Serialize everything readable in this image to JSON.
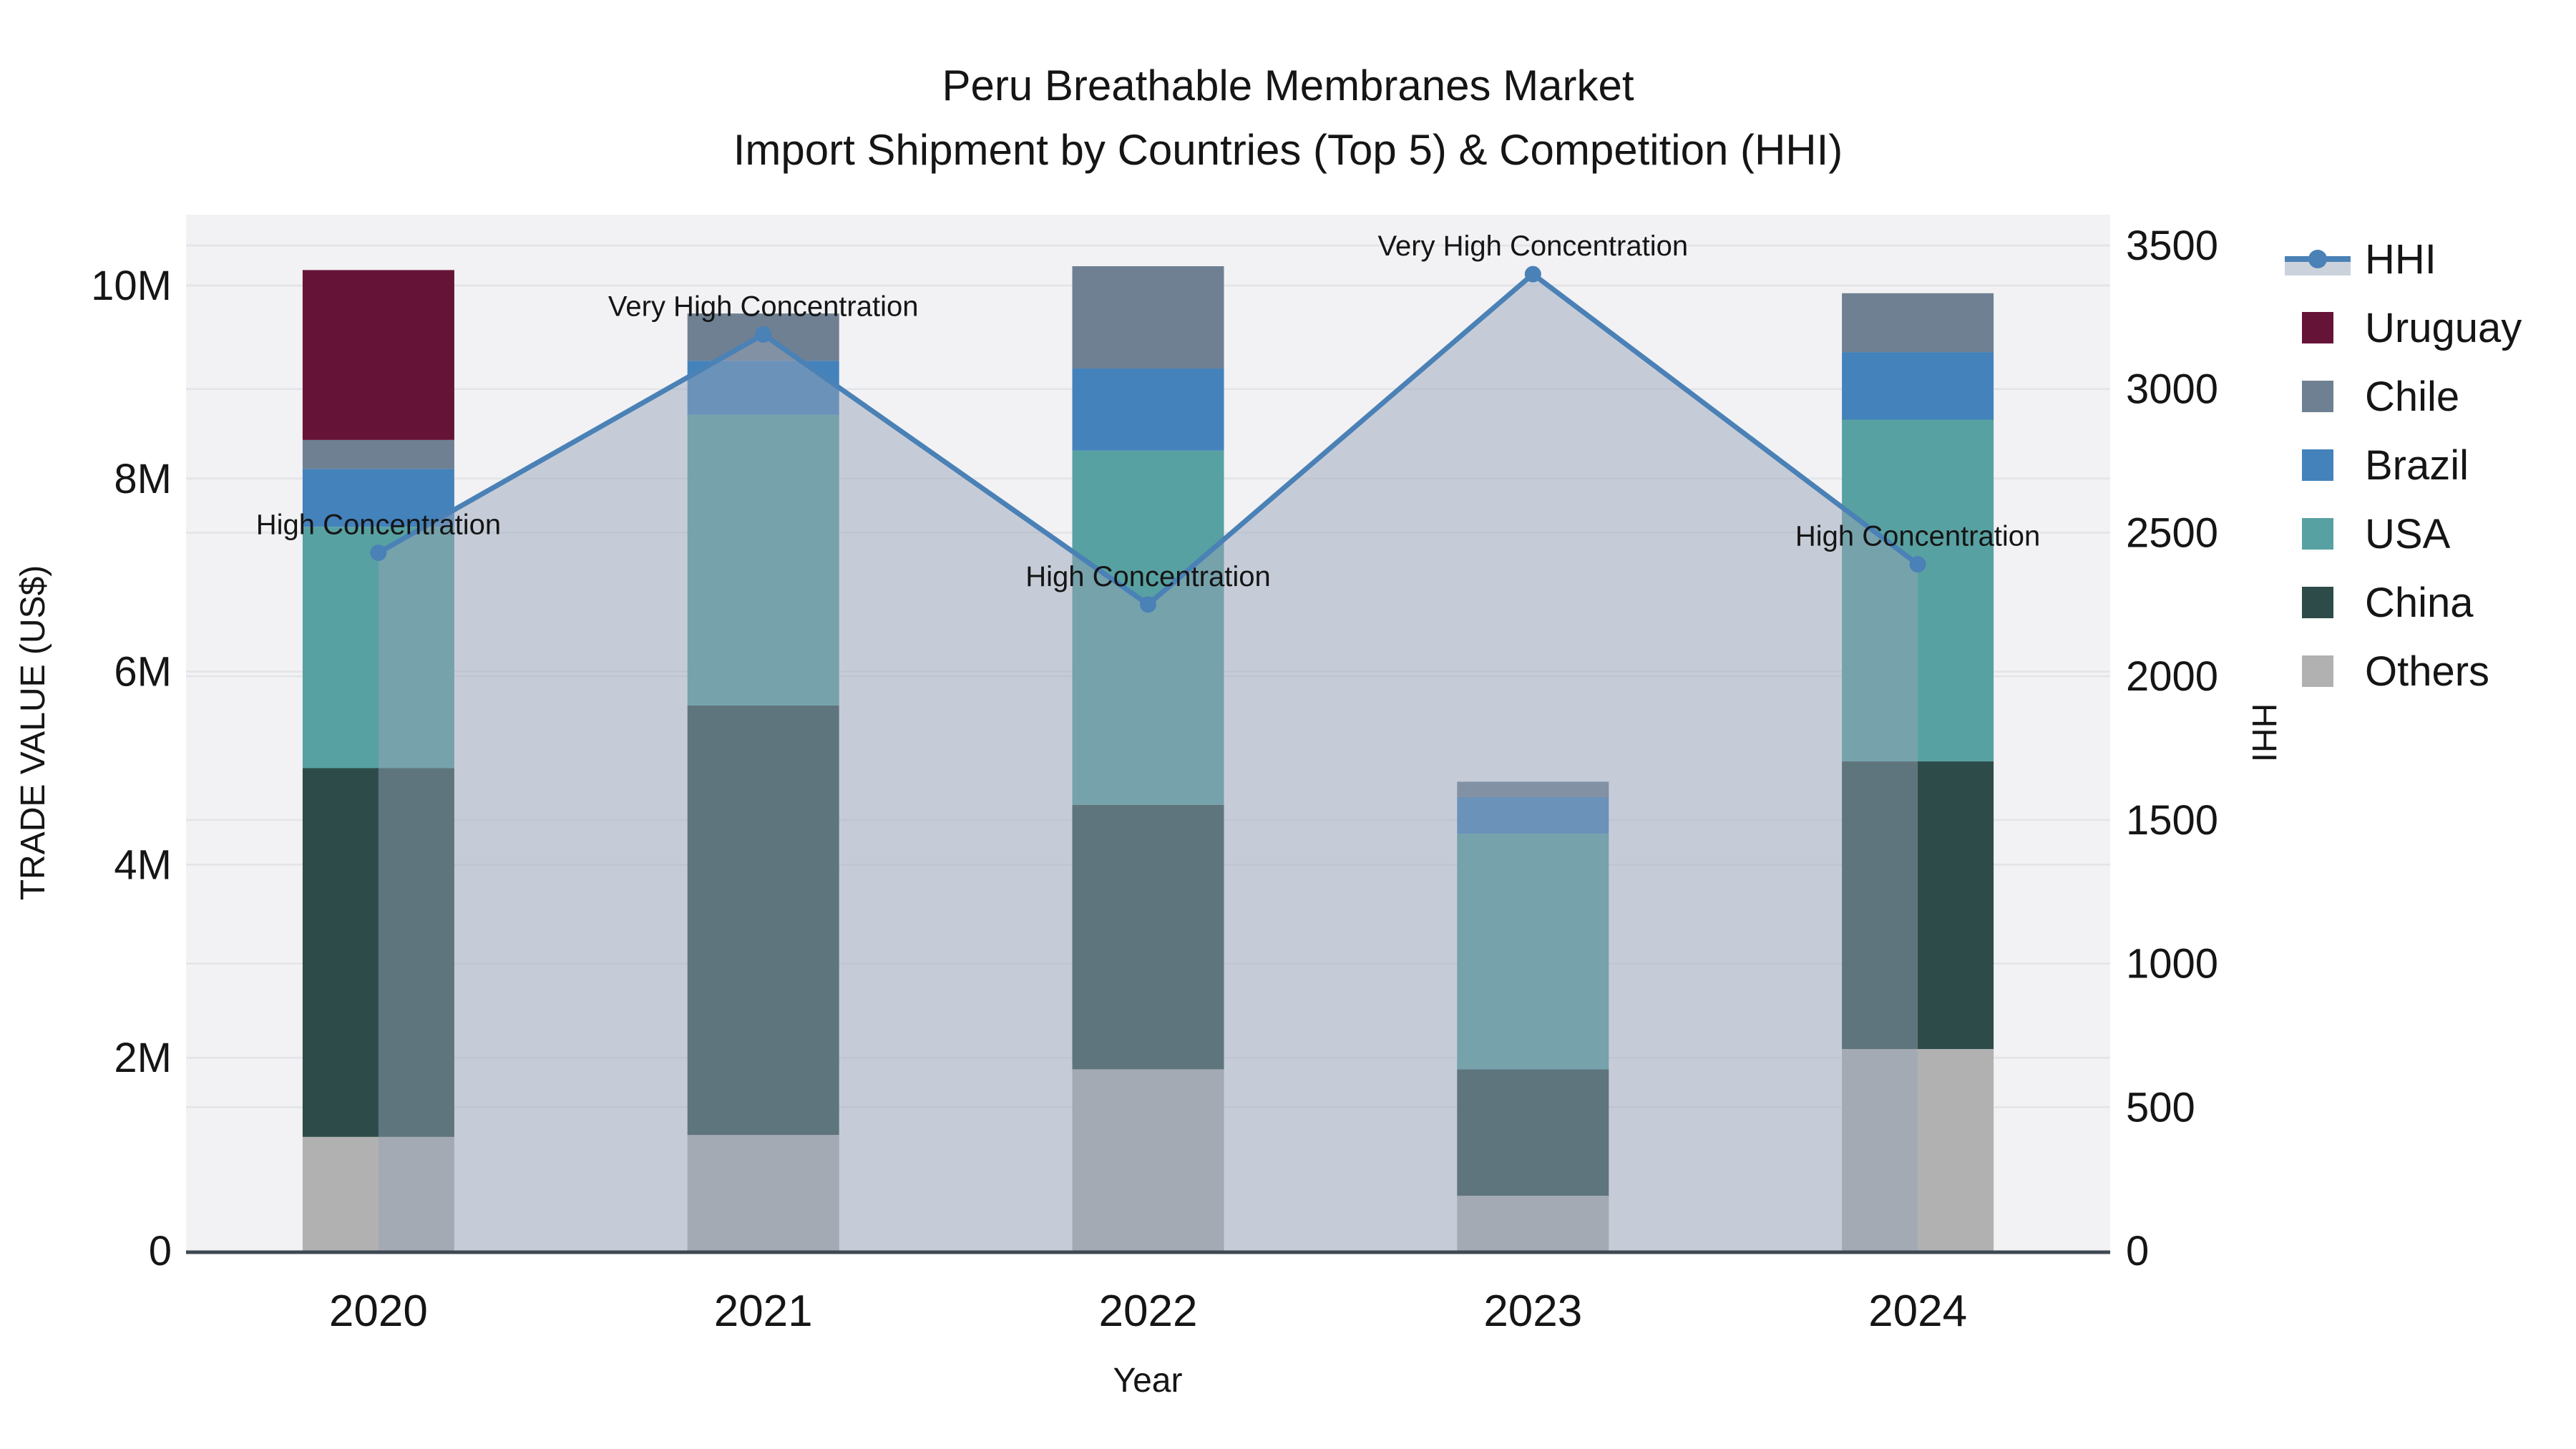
{
  "title": {
    "line1": "Peru Breathable Membranes Market",
    "line2": "Import Shipment by Countries (Top 5) & Competition (HHI)"
  },
  "axes": {
    "x": {
      "title": "Year",
      "categories": [
        "2020",
        "2021",
        "2022",
        "2023",
        "2024"
      ]
    },
    "y_left": {
      "title": "TRADE VALUE (US$)",
      "tick_values": [
        0,
        2,
        4,
        6,
        8,
        10
      ],
      "tick_labels": [
        "0",
        "2M",
        "4M",
        "6M",
        "8M",
        "10M"
      ],
      "unit": "US$ millions",
      "range": [
        0,
        10.73
      ]
    },
    "y_right": {
      "title": "HHI",
      "tick_values": [
        0,
        500,
        1000,
        1500,
        2000,
        2500,
        3000,
        3500
      ],
      "tick_labels": [
        "0",
        "500",
        "1000",
        "1500",
        "2000",
        "2500",
        "3000",
        "3500"
      ],
      "range": [
        0,
        3605
      ]
    }
  },
  "legend": {
    "items": [
      {
        "label": "HHI",
        "type": "line"
      },
      {
        "label": "Uruguay",
        "type": "swatch",
        "color": "#661338"
      },
      {
        "label": "Chile",
        "type": "swatch",
        "color": "#6f8093"
      },
      {
        "label": "Brazil",
        "type": "swatch",
        "color": "#4382bb"
      },
      {
        "label": "USA",
        "type": "swatch",
        "color": "#58a1a2"
      },
      {
        "label": "China",
        "type": "swatch",
        "color": "#2d4b49"
      },
      {
        "label": "Others",
        "type": "swatch",
        "color": "#b1b1b1"
      }
    ]
  },
  "colors": {
    "hhi_line": "#4a81b6",
    "hhi_fill": "rgba(150,163,183,0.48)",
    "hhi_legend_fill": "#ccd2dc",
    "plot_bg": "#f2f2f4",
    "gridline": "#e3e4e8",
    "axis_line": "#3d4852",
    "text": "#151515"
  },
  "chart_data": {
    "type": "bar+line",
    "subtype": "stacked bars (left axis) with HHI area line (right axis)",
    "categories": [
      "2020",
      "2021",
      "2022",
      "2023",
      "2024"
    ],
    "bar_value_unit": "US$ millions",
    "stack_order_bottom_to_top": [
      "Others",
      "China",
      "USA",
      "Brazil",
      "Chile",
      "Uruguay"
    ],
    "series": [
      {
        "name": "Others",
        "color": "#b1b1b1",
        "values": [
          1.18,
          1.2,
          1.88,
          0.57,
          2.09
        ]
      },
      {
        "name": "China",
        "color": "#2d4b49",
        "values": [
          3.82,
          4.45,
          2.74,
          1.31,
          2.98
        ]
      },
      {
        "name": "USA",
        "color": "#58a1a2",
        "values": [
          2.5,
          3.01,
          3.67,
          2.44,
          3.54
        ]
      },
      {
        "name": "Brazil",
        "color": "#4382bb",
        "values": [
          0.6,
          0.56,
          0.85,
          0.38,
          0.7
        ]
      },
      {
        "name": "Chile",
        "color": "#6f8093",
        "values": [
          0.3,
          0.49,
          1.06,
          0.16,
          0.61
        ]
      },
      {
        "name": "Uruguay",
        "color": "#661338",
        "values": [
          1.76,
          0,
          0,
          0,
          0
        ]
      }
    ],
    "bar_totals": [
      10.16,
      9.71,
      10.2,
      4.86,
      9.92
    ],
    "line": {
      "name": "HHI",
      "axis": "right",
      "values": [
        2430,
        3190,
        2250,
        3400,
        2390
      ],
      "fill_to_zero": true
    },
    "annotations": [
      {
        "category": "2020",
        "text": "High Concentration"
      },
      {
        "category": "2021",
        "text": "Very High Concentration"
      },
      {
        "category": "2022",
        "text": "High Concentration"
      },
      {
        "category": "2023",
        "text": "Very High Concentration"
      },
      {
        "category": "2024",
        "text": "High Concentration"
      }
    ],
    "legend_position": "right",
    "grid": "on"
  }
}
